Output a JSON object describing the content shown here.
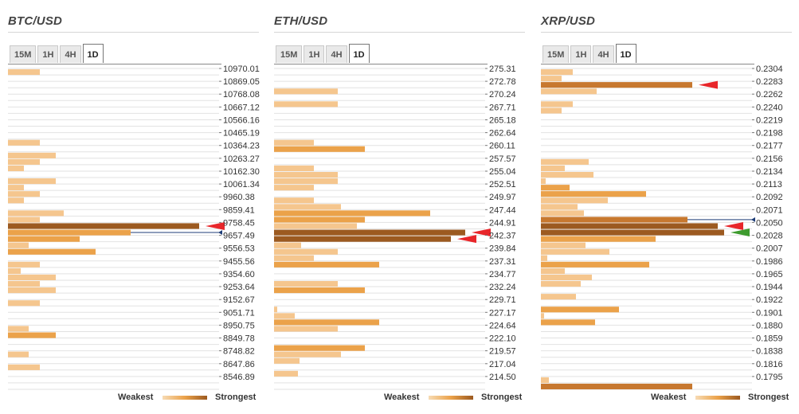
{
  "legend": {
    "weakest": "Weakest",
    "strongest": "Strongest"
  },
  "timeframes": [
    "15M",
    "1H",
    "4H",
    "1D"
  ],
  "active_timeframe": "1D",
  "colors": {
    "light": "#f5c68e",
    "mid": "#eba24a",
    "dark": "#c7782f",
    "darkest": "#9c5a20",
    "grid": "#e2e2e2",
    "marker_red": "#e8262a",
    "marker_green": "#3d9b2e",
    "price_line": "#1f3e78"
  },
  "chart_data": [
    {
      "type": "bar",
      "title": "BTC/USD",
      "orientation": "horizontal",
      "max_strength": 10,
      "tick_labels": [
        "10970.01",
        "10869.05",
        "10768.08",
        "10667.12",
        "10566.16",
        "10465.19",
        "10364.23",
        "10263.27",
        "10162.30",
        "10061.34",
        "9960.38",
        "9859.41",
        "9758.45",
        "9657.49",
        "9556.53",
        "9455.56",
        "9354.60",
        "9253.64",
        "9152.67",
        "9051.71",
        "8950.75",
        "8849.78",
        "8748.82",
        "8647.86",
        "8546.89"
      ],
      "bars": [
        {
          "s": 2,
          "c": "light"
        },
        {
          "s": 0,
          "c": "light"
        },
        {
          "s": 0,
          "c": "light"
        },
        {
          "s": 0,
          "c": "light"
        },
        {
          "s": 0,
          "c": "light"
        },
        {
          "s": 0,
          "c": "light"
        },
        {
          "s": 0,
          "c": "light"
        },
        {
          "s": 0,
          "c": "light"
        },
        {
          "s": 0,
          "c": "light"
        },
        {
          "s": 0,
          "c": "light"
        },
        {
          "s": 0,
          "c": "light"
        },
        {
          "s": 2,
          "c": "light"
        },
        {
          "s": 0,
          "c": "light"
        },
        {
          "s": 3,
          "c": "light"
        },
        {
          "s": 2,
          "c": "light"
        },
        {
          "s": 1,
          "c": "light"
        },
        {
          "s": 0,
          "c": "light"
        },
        {
          "s": 3,
          "c": "light"
        },
        {
          "s": 1,
          "c": "light"
        },
        {
          "s": 2,
          "c": "light"
        },
        {
          "s": 1,
          "c": "light"
        },
        {
          "s": 0,
          "c": "light"
        },
        {
          "s": 3.5,
          "c": "light"
        },
        {
          "s": 2,
          "c": "light"
        },
        {
          "s": 12,
          "c": "darkest",
          "marker": "red"
        },
        {
          "s": 7.7,
          "c": "mid",
          "price_line": true
        },
        {
          "s": 4.5,
          "c": "mid"
        },
        {
          "s": 1.3,
          "c": "light"
        },
        {
          "s": 5.5,
          "c": "mid"
        },
        {
          "s": 0,
          "c": "light"
        },
        {
          "s": 2,
          "c": "light"
        },
        {
          "s": 0.8,
          "c": "light"
        },
        {
          "s": 3,
          "c": "light"
        },
        {
          "s": 2,
          "c": "light"
        },
        {
          "s": 3,
          "c": "light"
        },
        {
          "s": 0,
          "c": "light"
        },
        {
          "s": 2,
          "c": "light"
        },
        {
          "s": 0,
          "c": "light"
        },
        {
          "s": 0,
          "c": "light"
        },
        {
          "s": 0,
          "c": "light"
        },
        {
          "s": 1.3,
          "c": "light"
        },
        {
          "s": 3,
          "c": "mid"
        },
        {
          "s": 0,
          "c": "light"
        },
        {
          "s": 0,
          "c": "light"
        },
        {
          "s": 1.3,
          "c": "light"
        },
        {
          "s": 0,
          "c": "light"
        },
        {
          "s": 2,
          "c": "light"
        },
        {
          "s": 0,
          "c": "light"
        },
        {
          "s": 0,
          "c": "light"
        },
        {
          "s": 0,
          "c": "light"
        }
      ]
    },
    {
      "type": "bar",
      "title": "ETH/USD",
      "orientation": "horizontal",
      "max_strength": 10,
      "tick_labels": [
        "275.31",
        "272.78",
        "270.24",
        "267.71",
        "265.18",
        "262.64",
        "260.11",
        "257.57",
        "255.04",
        "252.51",
        "249.97",
        "247.44",
        "244.91",
        "242.37",
        "239.84",
        "237.31",
        "234.77",
        "232.24",
        "229.71",
        "227.17",
        "224.64",
        "222.10",
        "219.57",
        "217.04",
        "214.50"
      ],
      "bars": [
        {
          "s": 0,
          "c": "light"
        },
        {
          "s": 0,
          "c": "light"
        },
        {
          "s": 0,
          "c": "light"
        },
        {
          "s": 4,
          "c": "light"
        },
        {
          "s": 0,
          "c": "light"
        },
        {
          "s": 4,
          "c": "light"
        },
        {
          "s": 0,
          "c": "light"
        },
        {
          "s": 0,
          "c": "light"
        },
        {
          "s": 0,
          "c": "light"
        },
        {
          "s": 0,
          "c": "light"
        },
        {
          "s": 0,
          "c": "light"
        },
        {
          "s": 2.5,
          "c": "light"
        },
        {
          "s": 5.7,
          "c": "mid"
        },
        {
          "s": 0,
          "c": "light"
        },
        {
          "s": 0,
          "c": "light"
        },
        {
          "s": 2.5,
          "c": "light"
        },
        {
          "s": 4,
          "c": "light"
        },
        {
          "s": 4,
          "c": "light"
        },
        {
          "s": 2.5,
          "c": "light"
        },
        {
          "s": 0,
          "c": "light"
        },
        {
          "s": 2.5,
          "c": "light"
        },
        {
          "s": 4.2,
          "c": "light"
        },
        {
          "s": 9.8,
          "c": "mid"
        },
        {
          "s": 5.7,
          "c": "mid"
        },
        {
          "s": 5.2,
          "c": "light"
        },
        {
          "s": 12,
          "c": "darkest",
          "marker": "red"
        },
        {
          "s": 11.1,
          "c": "darkest",
          "marker": "red"
        },
        {
          "s": 1.7,
          "c": "light"
        },
        {
          "s": 4,
          "c": "light"
        },
        {
          "s": 2.5,
          "c": "light"
        },
        {
          "s": 6.6,
          "c": "mid"
        },
        {
          "s": 0,
          "c": "light"
        },
        {
          "s": 0,
          "c": "light"
        },
        {
          "s": 4,
          "c": "light"
        },
        {
          "s": 5.7,
          "c": "mid"
        },
        {
          "s": 0,
          "c": "light"
        },
        {
          "s": 0,
          "c": "light"
        },
        {
          "s": 0.2,
          "c": "light"
        },
        {
          "s": 1.3,
          "c": "light"
        },
        {
          "s": 6.6,
          "c": "mid"
        },
        {
          "s": 4,
          "c": "light"
        },
        {
          "s": 0,
          "c": "light"
        },
        {
          "s": 0,
          "c": "light"
        },
        {
          "s": 5.7,
          "c": "mid"
        },
        {
          "s": 4.2,
          "c": "light"
        },
        {
          "s": 1.6,
          "c": "light"
        },
        {
          "s": 0,
          "c": "light"
        },
        {
          "s": 1.5,
          "c": "light"
        },
        {
          "s": 0,
          "c": "light"
        },
        {
          "s": 0,
          "c": "light"
        }
      ]
    },
    {
      "type": "bar",
      "title": "XRP/USD",
      "orientation": "horizontal",
      "max_strength": 10,
      "tick_labels": [
        "0.2304",
        "0.2283",
        "0.2262",
        "0.2240",
        "0.2219",
        "0.2198",
        "0.2177",
        "0.2156",
        "0.2134",
        "0.2113",
        "0.2092",
        "0.2071",
        "0.2050",
        "0.2028",
        "0.2007",
        "0.1986",
        "0.1965",
        "0.1944",
        "0.1922",
        "0.1901",
        "0.1880",
        "0.1859",
        "0.1838",
        "0.1816",
        "0.1795"
      ],
      "bars": [
        {
          "s": 2,
          "c": "light"
        },
        {
          "s": 1.3,
          "c": "light"
        },
        {
          "s": 9.5,
          "c": "dark",
          "marker": "red"
        },
        {
          "s": 3.5,
          "c": "light"
        },
        {
          "s": 0,
          "c": "light"
        },
        {
          "s": 2,
          "c": "light"
        },
        {
          "s": 1.3,
          "c": "light"
        },
        {
          "s": 0,
          "c": "light"
        },
        {
          "s": 0,
          "c": "light"
        },
        {
          "s": 0,
          "c": "light"
        },
        {
          "s": 0,
          "c": "light"
        },
        {
          "s": 0,
          "c": "light"
        },
        {
          "s": 0,
          "c": "light"
        },
        {
          "s": 0,
          "c": "light"
        },
        {
          "s": 3,
          "c": "light"
        },
        {
          "s": 1.5,
          "c": "light"
        },
        {
          "s": 3.3,
          "c": "light"
        },
        {
          "s": 0.3,
          "c": "light"
        },
        {
          "s": 1.8,
          "c": "mid"
        },
        {
          "s": 6.6,
          "c": "mid"
        },
        {
          "s": 4.2,
          "c": "light"
        },
        {
          "s": 2.3,
          "c": "light"
        },
        {
          "s": 2.7,
          "c": "light"
        },
        {
          "s": 9.2,
          "c": "dark",
          "price_line": true
        },
        {
          "s": 11.1,
          "c": "darkest",
          "marker": "red"
        },
        {
          "s": 11.5,
          "c": "darkest",
          "marker": "green"
        },
        {
          "s": 7.2,
          "c": "mid"
        },
        {
          "s": 2.8,
          "c": "light"
        },
        {
          "s": 4.3,
          "c": "light"
        },
        {
          "s": 0.4,
          "c": "light"
        },
        {
          "s": 6.8,
          "c": "mid"
        },
        {
          "s": 1.5,
          "c": "light"
        },
        {
          "s": 3.2,
          "c": "light"
        },
        {
          "s": 2.5,
          "c": "light"
        },
        {
          "s": 0,
          "c": "light"
        },
        {
          "s": 2.2,
          "c": "light"
        },
        {
          "s": 0,
          "c": "light"
        },
        {
          "s": 4.9,
          "c": "mid"
        },
        {
          "s": 0.2,
          "c": "light"
        },
        {
          "s": 3.4,
          "c": "mid"
        },
        {
          "s": 0,
          "c": "light"
        },
        {
          "s": 0,
          "c": "light"
        },
        {
          "s": 0,
          "c": "light"
        },
        {
          "s": 0,
          "c": "light"
        },
        {
          "s": 0,
          "c": "light"
        },
        {
          "s": 0,
          "c": "light"
        },
        {
          "s": 0,
          "c": "light"
        },
        {
          "s": 0,
          "c": "light"
        },
        {
          "s": 0.5,
          "c": "light"
        },
        {
          "s": 9.5,
          "c": "dark"
        }
      ]
    }
  ]
}
